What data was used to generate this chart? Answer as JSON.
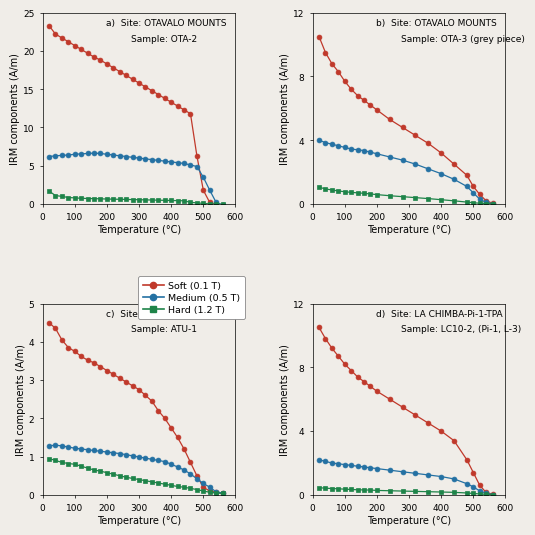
{
  "panels": [
    {
      "label": "a)",
      "site": "Site: OTAVALO MOUNTS",
      "sample": "Sample: OTA-2",
      "ylim": [
        0,
        25
      ],
      "yticks": [
        0,
        5,
        10,
        15,
        20,
        25
      ],
      "red": {
        "x": [
          20,
          40,
          60,
          80,
          100,
          120,
          140,
          160,
          180,
          200,
          220,
          240,
          260,
          280,
          300,
          320,
          340,
          360,
          380,
          400,
          420,
          440,
          460,
          480,
          500,
          520,
          540,
          560
        ],
        "y": [
          23.3,
          22.2,
          21.7,
          21.2,
          20.7,
          20.2,
          19.7,
          19.2,
          18.8,
          18.3,
          17.8,
          17.3,
          16.8,
          16.3,
          15.8,
          15.3,
          14.8,
          14.3,
          13.8,
          13.3,
          12.8,
          12.3,
          11.8,
          6.3,
          1.8,
          0.2,
          -0.1,
          -0.2
        ]
      },
      "blue": {
        "x": [
          20,
          40,
          60,
          80,
          100,
          120,
          140,
          160,
          180,
          200,
          220,
          240,
          260,
          280,
          300,
          320,
          340,
          360,
          380,
          400,
          420,
          440,
          460,
          480,
          500,
          520,
          540,
          560
        ],
        "y": [
          6.2,
          6.3,
          6.35,
          6.4,
          6.5,
          6.55,
          6.6,
          6.65,
          6.6,
          6.5,
          6.4,
          6.3,
          6.2,
          6.1,
          6.0,
          5.9,
          5.8,
          5.7,
          5.6,
          5.5,
          5.4,
          5.3,
          5.1,
          4.9,
          3.5,
          1.8,
          0.2,
          -0.1
        ]
      },
      "green": {
        "x": [
          20,
          40,
          60,
          80,
          100,
          120,
          140,
          160,
          180,
          200,
          220,
          240,
          260,
          280,
          300,
          320,
          340,
          360,
          380,
          400,
          420,
          440,
          460,
          480,
          500,
          520,
          540,
          560
        ],
        "y": [
          1.7,
          1.1,
          1.0,
          0.85,
          0.8,
          0.75,
          0.72,
          0.7,
          0.68,
          0.65,
          0.63,
          0.62,
          0.6,
          0.58,
          0.56,
          0.54,
          0.52,
          0.5,
          0.48,
          0.46,
          0.44,
          0.42,
          0.22,
          0.15,
          0.08,
          0.02,
          -0.02,
          -0.05
        ]
      }
    },
    {
      "label": "b)",
      "site": "Site: OTAVALO MOUNTS",
      "sample": "Sample: OTA-3 (grey piece)",
      "ylim": [
        0,
        12
      ],
      "yticks": [
        0,
        4,
        8,
        12
      ],
      "red": {
        "x": [
          20,
          40,
          60,
          80,
          100,
          120,
          140,
          160,
          180,
          200,
          240,
          280,
          320,
          360,
          400,
          440,
          480,
          500,
          520,
          540,
          560
        ],
        "y": [
          10.5,
          9.5,
          8.8,
          8.3,
          7.7,
          7.2,
          6.8,
          6.5,
          6.2,
          5.9,
          5.3,
          4.8,
          4.3,
          3.8,
          3.2,
          2.5,
          1.8,
          1.1,
          0.6,
          0.2,
          0.05
        ]
      },
      "blue": {
        "x": [
          20,
          40,
          60,
          80,
          100,
          120,
          140,
          160,
          180,
          200,
          240,
          280,
          320,
          360,
          400,
          440,
          480,
          500,
          520,
          540,
          560
        ],
        "y": [
          4.0,
          3.85,
          3.75,
          3.65,
          3.55,
          3.45,
          3.4,
          3.35,
          3.25,
          3.15,
          2.95,
          2.75,
          2.5,
          2.2,
          1.9,
          1.55,
          1.1,
          0.7,
          0.3,
          0.1,
          0.02
        ]
      },
      "green": {
        "x": [
          20,
          40,
          60,
          80,
          100,
          120,
          140,
          160,
          180,
          200,
          240,
          280,
          320,
          360,
          400,
          440,
          480,
          500,
          520,
          540,
          560
        ],
        "y": [
          1.05,
          0.95,
          0.88,
          0.82,
          0.77,
          0.73,
          0.7,
          0.67,
          0.63,
          0.59,
          0.52,
          0.46,
          0.4,
          0.34,
          0.27,
          0.2,
          0.12,
          0.08,
          0.05,
          0.02,
          0.01
        ]
      }
    },
    {
      "label": "c)",
      "site": "Site: ATUNTAQUI-Mound 30",
      "sample": "Sample: ATU-1",
      "ylim": [
        0,
        5
      ],
      "yticks": [
        0,
        1,
        2,
        3,
        4,
        5
      ],
      "red": {
        "x": [
          20,
          40,
          60,
          80,
          100,
          120,
          140,
          160,
          180,
          200,
          220,
          240,
          260,
          280,
          300,
          320,
          340,
          360,
          380,
          400,
          420,
          440,
          460,
          480,
          500,
          520,
          540,
          560
        ],
        "y": [
          4.5,
          4.35,
          4.05,
          3.85,
          3.75,
          3.62,
          3.52,
          3.45,
          3.35,
          3.25,
          3.15,
          3.05,
          2.95,
          2.85,
          2.75,
          2.6,
          2.45,
          2.2,
          2.0,
          1.75,
          1.5,
          1.2,
          0.85,
          0.5,
          0.2,
          0.1,
          0.07,
          0.05
        ]
      },
      "blue": {
        "x": [
          20,
          40,
          60,
          80,
          100,
          120,
          140,
          160,
          180,
          200,
          220,
          240,
          260,
          280,
          300,
          320,
          340,
          360,
          380,
          400,
          420,
          440,
          460,
          480,
          500,
          520,
          540,
          560
        ],
        "y": [
          1.28,
          1.3,
          1.28,
          1.25,
          1.22,
          1.2,
          1.18,
          1.16,
          1.14,
          1.12,
          1.1,
          1.08,
          1.05,
          1.02,
          0.99,
          0.96,
          0.93,
          0.9,
          0.87,
          0.8,
          0.73,
          0.65,
          0.55,
          0.42,
          0.3,
          0.2,
          0.08,
          0.05
        ]
      },
      "green": {
        "x": [
          20,
          40,
          60,
          80,
          100,
          120,
          140,
          160,
          180,
          200,
          220,
          240,
          260,
          280,
          300,
          320,
          340,
          360,
          380,
          400,
          420,
          440,
          460,
          480,
          500,
          520,
          540,
          560
        ],
        "y": [
          0.95,
          0.9,
          0.85,
          0.82,
          0.8,
          0.75,
          0.7,
          0.65,
          0.62,
          0.58,
          0.54,
          0.5,
          0.46,
          0.43,
          0.4,
          0.37,
          0.34,
          0.31,
          0.28,
          0.25,
          0.22,
          0.2,
          0.17,
          0.14,
          0.1,
          0.07,
          0.05,
          0.04
        ]
      }
    },
    {
      "label": "d)",
      "site": "Site: LA CHIMBA-Pi-1-TPA",
      "sample": "Sample: LC10-2, (Pi-1, L-3)",
      "ylim": [
        0,
        12
      ],
      "yticks": [
        0,
        4,
        8,
        12
      ],
      "red": {
        "x": [
          20,
          40,
          60,
          80,
          100,
          120,
          140,
          160,
          180,
          200,
          240,
          280,
          320,
          360,
          400,
          440,
          480,
          500,
          520,
          540,
          560
        ],
        "y": [
          10.5,
          9.8,
          9.2,
          8.7,
          8.2,
          7.8,
          7.4,
          7.1,
          6.8,
          6.5,
          6.0,
          5.5,
          5.0,
          4.5,
          4.0,
          3.4,
          2.2,
          1.4,
          0.6,
          0.15,
          0.05
        ]
      },
      "blue": {
        "x": [
          20,
          40,
          60,
          80,
          100,
          120,
          140,
          160,
          180,
          200,
          240,
          280,
          320,
          360,
          400,
          440,
          480,
          500,
          520,
          540,
          560
        ],
        "y": [
          2.2,
          2.1,
          2.0,
          1.95,
          1.9,
          1.85,
          1.8,
          1.75,
          1.7,
          1.65,
          1.55,
          1.45,
          1.35,
          1.25,
          1.15,
          1.0,
          0.7,
          0.5,
          0.25,
          0.1,
          0.02
        ]
      },
      "green": {
        "x": [
          20,
          40,
          60,
          80,
          100,
          120,
          140,
          160,
          180,
          200,
          240,
          280,
          320,
          360,
          400,
          440,
          480,
          500,
          520,
          540,
          560
        ],
        "y": [
          0.45,
          0.42,
          0.4,
          0.38,
          0.36,
          0.34,
          0.32,
          0.31,
          0.3,
          0.28,
          0.26,
          0.24,
          0.22,
          0.2,
          0.18,
          0.16,
          0.12,
          0.09,
          0.06,
          0.03,
          0.01
        ]
      }
    }
  ],
  "legend": [
    {
      "label": "Soft (0.1 T)",
      "color": "#c0392b",
      "marker": "o"
    },
    {
      "label": "Medium (0.5 T)",
      "color": "#2471a3",
      "marker": "o"
    },
    {
      "label": "Hard (1.2 T)",
      "color": "#1e8449",
      "marker": "s"
    }
  ],
  "xlabel": "Temperature (°C)",
  "ylabel": "IRM components (A/m)",
  "xlim": [
    0,
    600
  ],
  "xticks": [
    0,
    100,
    200,
    300,
    400,
    500,
    600
  ],
  "red_color": "#c0392b",
  "blue_color": "#2471a3",
  "green_color": "#1e8449",
  "bg_color": "#f0ede8",
  "marker_size": 3.5,
  "line_width": 0.9
}
